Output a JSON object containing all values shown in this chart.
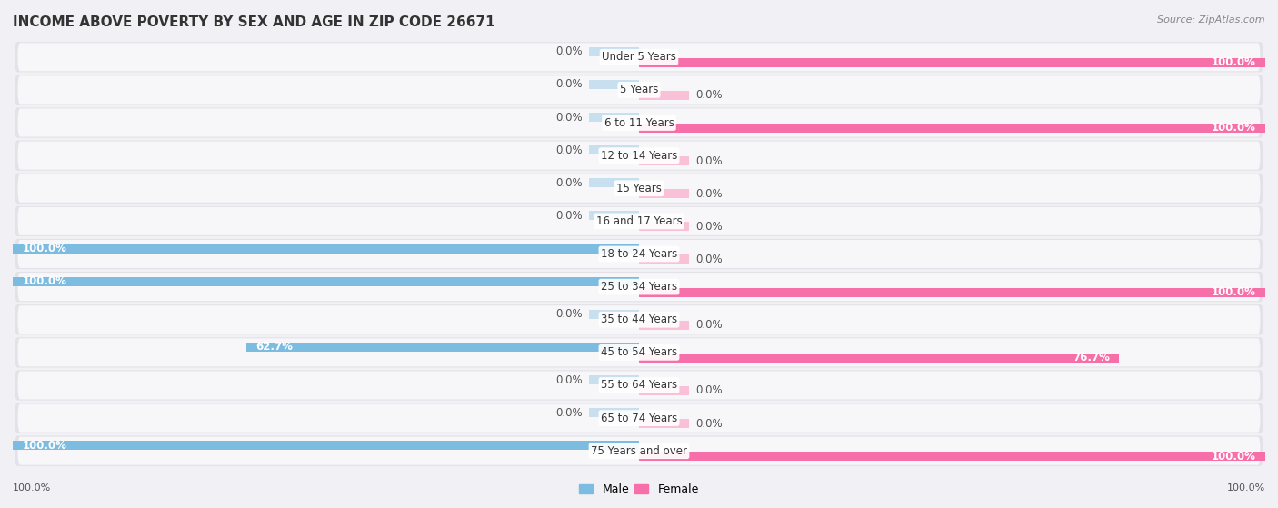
{
  "title": "INCOME ABOVE POVERTY BY SEX AND AGE IN ZIP CODE 26671",
  "source": "Source: ZipAtlas.com",
  "categories": [
    "Under 5 Years",
    "5 Years",
    "6 to 11 Years",
    "12 to 14 Years",
    "15 Years",
    "16 and 17 Years",
    "18 to 24 Years",
    "25 to 34 Years",
    "35 to 44 Years",
    "45 to 54 Years",
    "55 to 64 Years",
    "65 to 74 Years",
    "75 Years and over"
  ],
  "male_values": [
    0.0,
    0.0,
    0.0,
    0.0,
    0.0,
    0.0,
    100.0,
    100.0,
    0.0,
    62.7,
    0.0,
    0.0,
    100.0
  ],
  "female_values": [
    100.0,
    0.0,
    100.0,
    0.0,
    0.0,
    0.0,
    0.0,
    100.0,
    0.0,
    76.7,
    0.0,
    0.0,
    100.0
  ],
  "male_color": "#7bbce0",
  "female_color": "#f76fa8",
  "male_color_light": "#c8dff0",
  "female_color_light": "#f9c0d8",
  "row_bg_color": "#e8e8e8",
  "row_inner_color": "#f5f5f5",
  "title_fontsize": 11,
  "label_fontsize": 8.5,
  "value_fontsize": 8.5,
  "background_color": "#f0f0f5",
  "legend_labels": [
    "Male",
    "Female"
  ],
  "xlim_pct": 100
}
